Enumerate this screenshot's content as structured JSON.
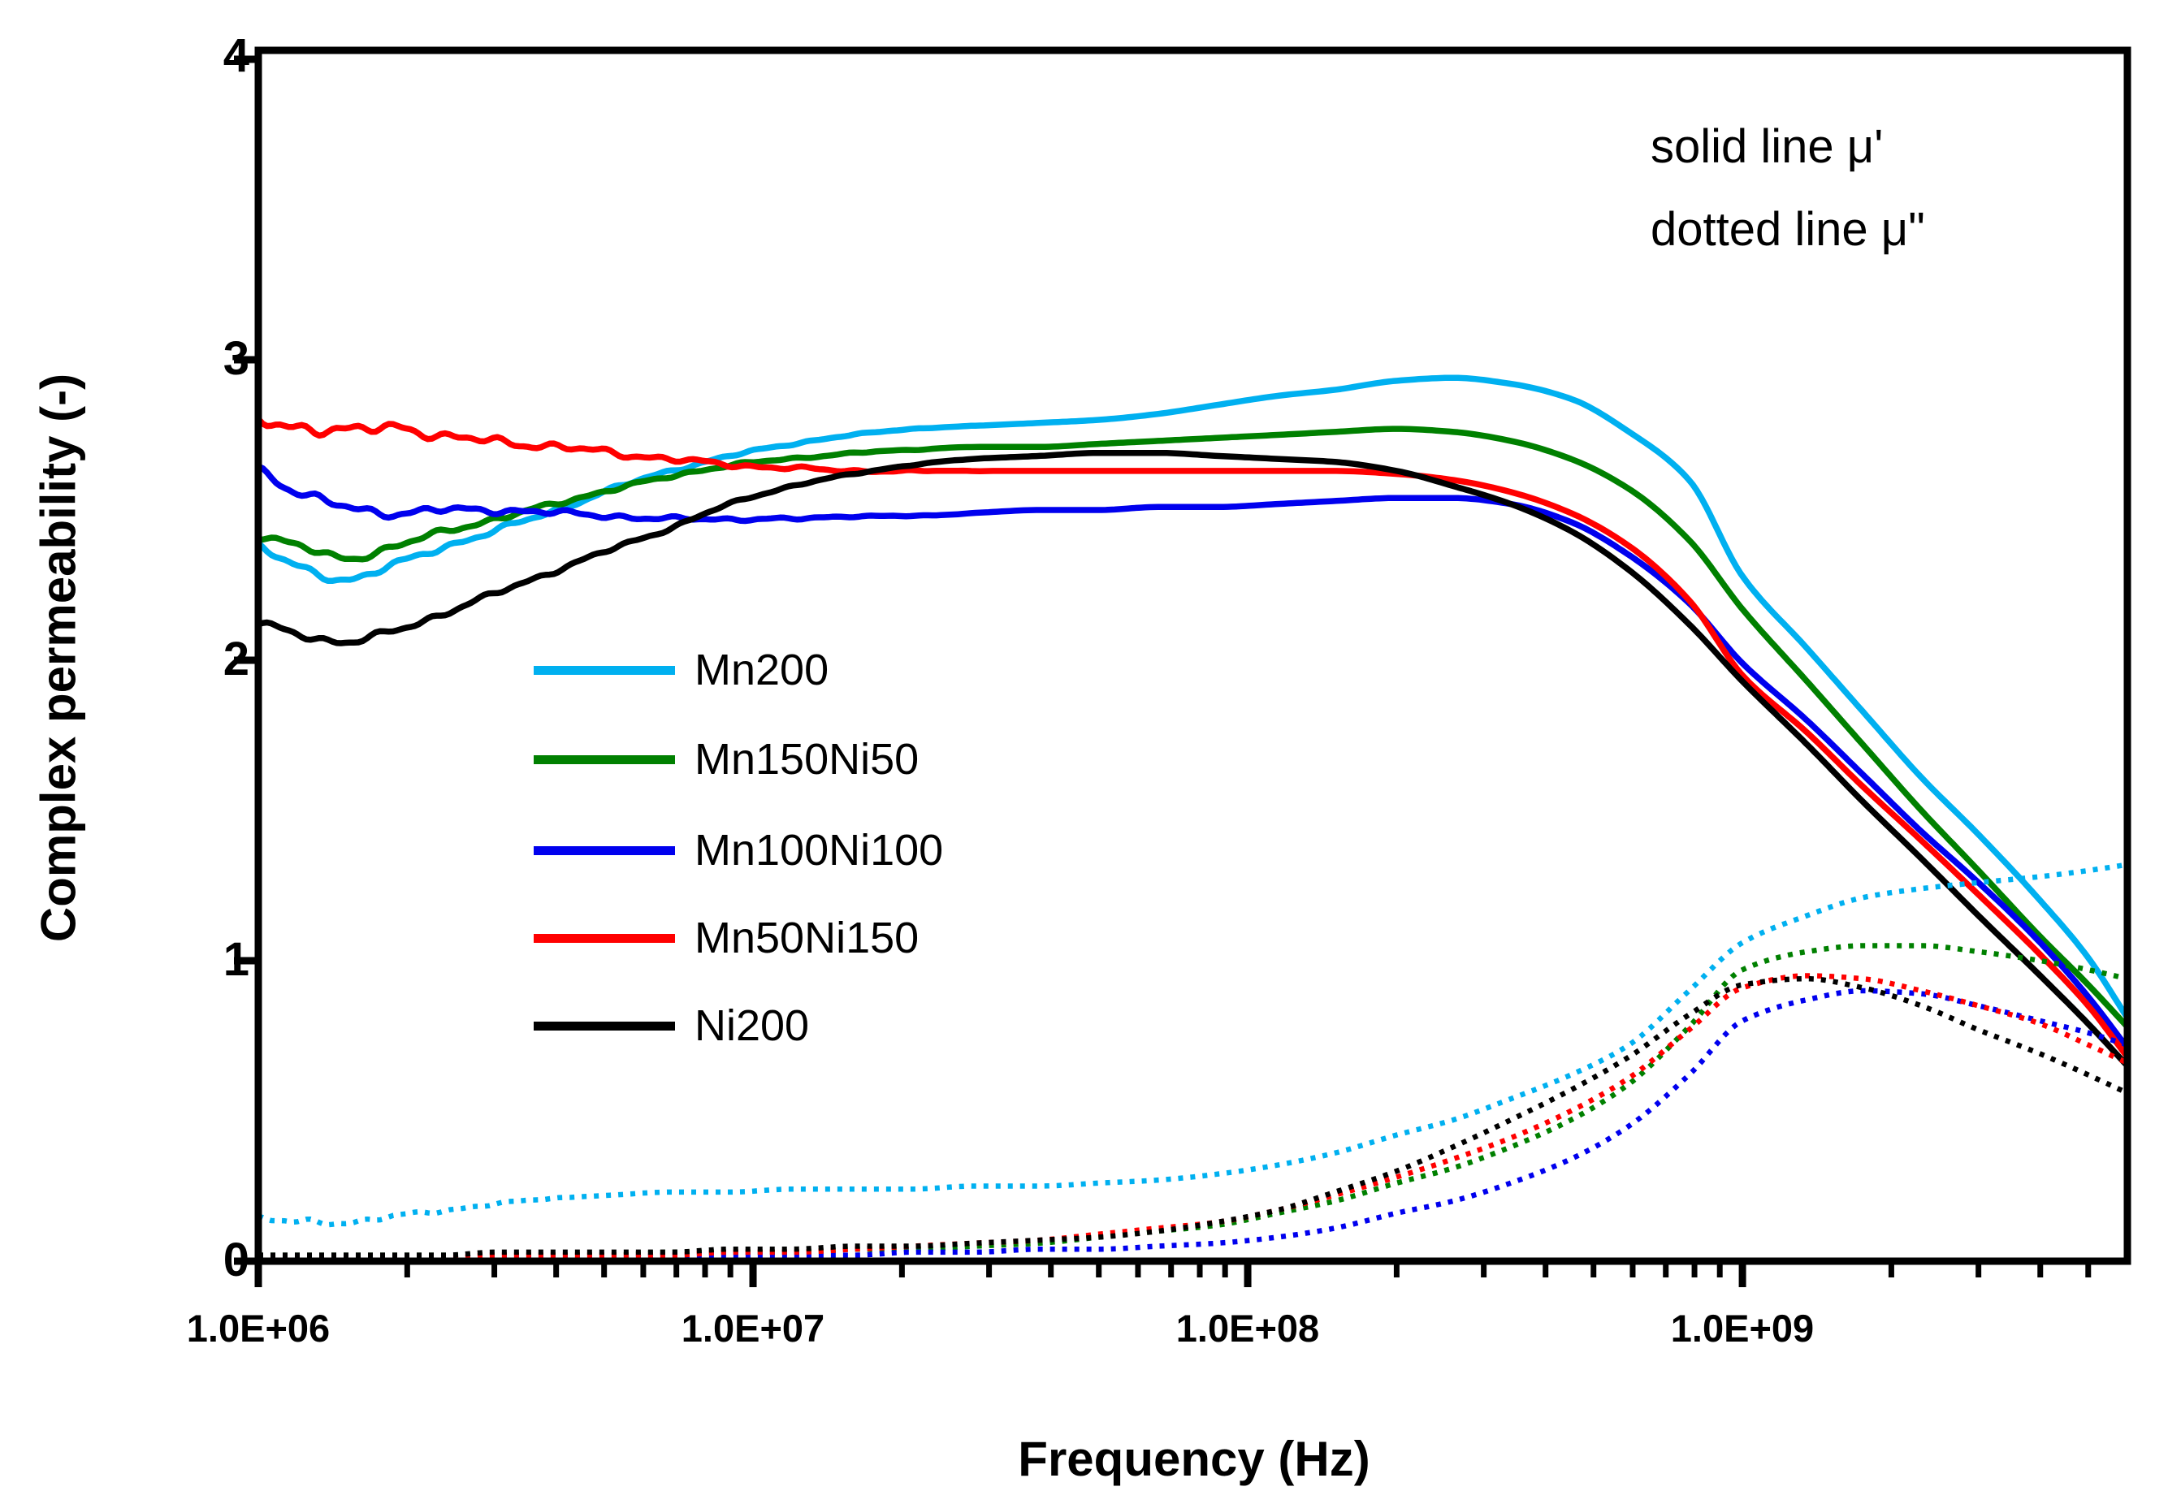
{
  "figure": {
    "background": "#ffffff"
  },
  "chart_data": {
    "type": "line",
    "title": "",
    "xlabel": "Frequency (Hz)",
    "ylabel": "Complex permeability (-)",
    "x_scale": "log",
    "xlim": [
      1000000.0,
      6000000000.0
    ],
    "ylim": [
      0,
      4
    ],
    "grid": "off",
    "legend_position": "inside-left-middle",
    "x_tick_labels": [
      "1.0E+06",
      "1.0E+07",
      "1.0E+08",
      "1.0E+09"
    ],
    "x_tick_values": [
      1000000.0,
      10000000.0,
      100000000.0,
      1000000000.0
    ],
    "y_tick_labels": [
      "0",
      "1",
      "2",
      "3",
      "4"
    ],
    "y_tick_values": [
      0,
      1,
      2,
      3,
      4
    ],
    "annotation": {
      "line1": "solid line μ'",
      "line2": "dotted line μ\""
    },
    "series": [
      {
        "label": "Mn200",
        "component": "mu_prime",
        "style": "solid",
        "color": "#00b0f0",
        "x": [
          1000000.0,
          1200000.0,
          1500000.0,
          1900000.0,
          2400000.0,
          3000000.0,
          4000000.0,
          5200000.0,
          6800000.0,
          9000000.0,
          12000000.0,
          16000000.0,
          21000000.0,
          28000000.0,
          38000000.0,
          50000000.0,
          66000000.0,
          87000000.0,
          115000000.0,
          150000000.0,
          200000000.0,
          260000000.0,
          340000000.0,
          450000000.0,
          590000000.0,
          780000000.0,
          1000000000.0,
          1350000000.0,
          1750000000.0,
          2300000000.0,
          3000000000.0,
          4000000000.0,
          5000000000.0,
          6000000000.0
        ],
        "y": [
          2.38,
          2.31,
          2.27,
          2.32,
          2.38,
          2.43,
          2.5,
          2.57,
          2.63,
          2.68,
          2.72,
          2.75,
          2.77,
          2.78,
          2.79,
          2.8,
          2.82,
          2.85,
          2.88,
          2.9,
          2.93,
          2.94,
          2.92,
          2.87,
          2.76,
          2.6,
          2.28,
          2.04,
          1.83,
          1.61,
          1.42,
          1.2,
          1.01,
          0.81
        ]
      },
      {
        "label": "Mn150Ni50",
        "component": "mu_prime",
        "style": "solid",
        "color": "#008000",
        "x": [
          1000000.0,
          1200000.0,
          1500000.0,
          1900000.0,
          2400000.0,
          3000000.0,
          4000000.0,
          5200000.0,
          6800000.0,
          9000000.0,
          12000000.0,
          16000000.0,
          21000000.0,
          28000000.0,
          38000000.0,
          50000000.0,
          66000000.0,
          87000000.0,
          115000000.0,
          150000000.0,
          200000000.0,
          260000000.0,
          340000000.0,
          450000000.0,
          590000000.0,
          780000000.0,
          1000000000.0,
          1350000000.0,
          1750000000.0,
          2300000000.0,
          3000000000.0,
          4000000000.0,
          5000000000.0,
          6000000000.0
        ],
        "y": [
          2.42,
          2.38,
          2.34,
          2.38,
          2.43,
          2.47,
          2.52,
          2.57,
          2.61,
          2.65,
          2.67,
          2.69,
          2.7,
          2.71,
          2.71,
          2.72,
          2.73,
          2.74,
          2.75,
          2.76,
          2.77,
          2.76,
          2.73,
          2.67,
          2.57,
          2.4,
          2.17,
          1.93,
          1.72,
          1.5,
          1.3,
          1.08,
          0.92,
          0.78
        ]
      },
      {
        "label": "Mn100Ni100",
        "component": "mu_prime",
        "style": "solid",
        "color": "#0000ee",
        "x": [
          1000000.0,
          1200000.0,
          1500000.0,
          1900000.0,
          2400000.0,
          3000000.0,
          4000000.0,
          5200000.0,
          6800000.0,
          9000000.0,
          12000000.0,
          16000000.0,
          21000000.0,
          28000000.0,
          38000000.0,
          50000000.0,
          66000000.0,
          87000000.0,
          115000000.0,
          150000000.0,
          200000000.0,
          260000000.0,
          340000000.0,
          450000000.0,
          590000000.0,
          780000000.0,
          1000000000.0,
          1350000000.0,
          1750000000.0,
          2300000000.0,
          3000000000.0,
          4000000000.0,
          5000000000.0,
          6000000000.0
        ],
        "y": [
          2.64,
          2.56,
          2.51,
          2.49,
          2.5,
          2.5,
          2.49,
          2.48,
          2.47,
          2.47,
          2.47,
          2.48,
          2.48,
          2.49,
          2.5,
          2.5,
          2.51,
          2.51,
          2.52,
          2.53,
          2.54,
          2.54,
          2.52,
          2.46,
          2.35,
          2.19,
          1.99,
          1.8,
          1.62,
          1.43,
          1.26,
          1.06,
          0.88,
          0.71
        ]
      },
      {
        "label": "Mn50Ni150",
        "component": "mu_prime",
        "style": "solid",
        "color": "#ff0000",
        "x": [
          1000000.0,
          1200000.0,
          1500000.0,
          1900000.0,
          2400000.0,
          3000000.0,
          4000000.0,
          5200000.0,
          6800000.0,
          9000000.0,
          12000000.0,
          16000000.0,
          21000000.0,
          28000000.0,
          38000000.0,
          50000000.0,
          66000000.0,
          87000000.0,
          115000000.0,
          150000000.0,
          200000000.0,
          260000000.0,
          340000000.0,
          450000000.0,
          590000000.0,
          780000000.0,
          1000000000.0,
          1350000000.0,
          1750000000.0,
          2300000000.0,
          3000000000.0,
          4000000000.0,
          5000000000.0,
          6000000000.0
        ],
        "y": [
          2.8,
          2.78,
          2.76,
          2.78,
          2.74,
          2.73,
          2.71,
          2.69,
          2.67,
          2.65,
          2.64,
          2.63,
          2.63,
          2.63,
          2.63,
          2.63,
          2.63,
          2.63,
          2.63,
          2.63,
          2.62,
          2.6,
          2.56,
          2.49,
          2.38,
          2.2,
          1.95,
          1.76,
          1.58,
          1.4,
          1.22,
          1.02,
          0.85,
          0.68
        ]
      },
      {
        "label": "Ni200",
        "component": "mu_prime",
        "style": "solid",
        "color": "#000000",
        "x": [
          1000000.0,
          1200000.0,
          1500000.0,
          1900000.0,
          2400000.0,
          3000000.0,
          4000000.0,
          5200000.0,
          6800000.0,
          9000000.0,
          12000000.0,
          16000000.0,
          21000000.0,
          28000000.0,
          38000000.0,
          50000000.0,
          66000000.0,
          87000000.0,
          115000000.0,
          150000000.0,
          200000000.0,
          260000000.0,
          340000000.0,
          450000000.0,
          590000000.0,
          780000000.0,
          1000000000.0,
          1350000000.0,
          1750000000.0,
          2300000000.0,
          3000000000.0,
          4000000000.0,
          5000000000.0,
          6000000000.0
        ],
        "y": [
          2.12,
          2.09,
          2.06,
          2.1,
          2.16,
          2.22,
          2.3,
          2.37,
          2.44,
          2.52,
          2.58,
          2.62,
          2.65,
          2.67,
          2.68,
          2.69,
          2.69,
          2.68,
          2.67,
          2.66,
          2.63,
          2.58,
          2.52,
          2.43,
          2.3,
          2.12,
          1.93,
          1.72,
          1.53,
          1.34,
          1.15,
          0.95,
          0.79,
          0.65
        ]
      },
      {
        "label": "Mn200",
        "component": "mu_double_prime",
        "style": "dotted",
        "color": "#00b0f0",
        "x": [
          1000000.0,
          1200000.0,
          1500000.0,
          1900000.0,
          2400000.0,
          3000000.0,
          4000000.0,
          5200000.0,
          6800000.0,
          9000000.0,
          12000000.0,
          16000000.0,
          21000000.0,
          28000000.0,
          38000000.0,
          50000000.0,
          66000000.0,
          87000000.0,
          115000000.0,
          150000000.0,
          200000000.0,
          260000000.0,
          340000000.0,
          450000000.0,
          590000000.0,
          780000000.0,
          1000000000.0,
          1350000000.0,
          1750000000.0,
          2300000000.0,
          3000000000.0,
          4000000000.0,
          5000000000.0,
          6000000000.0
        ],
        "y": [
          0.14,
          0.13,
          0.13,
          0.15,
          0.17,
          0.19,
          0.21,
          0.22,
          0.23,
          0.23,
          0.24,
          0.24,
          0.24,
          0.25,
          0.25,
          0.26,
          0.27,
          0.29,
          0.32,
          0.36,
          0.42,
          0.47,
          0.54,
          0.62,
          0.72,
          0.9,
          1.06,
          1.15,
          1.21,
          1.24,
          1.26,
          1.28,
          1.3,
          1.32
        ]
      },
      {
        "label": "Mn150Ni50",
        "component": "mu_double_prime",
        "style": "dotted",
        "color": "#008000",
        "x": [
          1000000.0,
          1200000.0,
          1500000.0,
          1900000.0,
          2400000.0,
          3000000.0,
          4000000.0,
          5200000.0,
          6800000.0,
          9000000.0,
          12000000.0,
          16000000.0,
          21000000.0,
          28000000.0,
          38000000.0,
          50000000.0,
          66000000.0,
          87000000.0,
          115000000.0,
          150000000.0,
          200000000.0,
          260000000.0,
          340000000.0,
          450000000.0,
          590000000.0,
          780000000.0,
          1000000000.0,
          1350000000.0,
          1750000000.0,
          2300000000.0,
          3000000000.0,
          4000000000.0,
          5000000000.0,
          6000000000.0
        ],
        "y": [
          0.02,
          0.02,
          0.02,
          0.02,
          0.02,
          0.02,
          0.02,
          0.02,
          0.03,
          0.03,
          0.03,
          0.04,
          0.04,
          0.05,
          0.06,
          0.08,
          0.1,
          0.12,
          0.16,
          0.2,
          0.26,
          0.31,
          0.38,
          0.47,
          0.59,
          0.78,
          0.97,
          1.03,
          1.05,
          1.05,
          1.03,
          1.0,
          0.97,
          0.94
        ]
      },
      {
        "label": "Mn100Ni100",
        "component": "mu_double_prime",
        "style": "dotted",
        "color": "#0000ee",
        "x": [
          1000000.0,
          1200000.0,
          1500000.0,
          1900000.0,
          2400000.0,
          3000000.0,
          4000000.0,
          5200000.0,
          6800000.0,
          9000000.0,
          12000000.0,
          16000000.0,
          21000000.0,
          28000000.0,
          38000000.0,
          50000000.0,
          66000000.0,
          87000000.0,
          115000000.0,
          150000000.0,
          200000000.0,
          260000000.0,
          340000000.0,
          450000000.0,
          590000000.0,
          780000000.0,
          1000000000.0,
          1350000000.0,
          1750000000.0,
          2300000000.0,
          3000000000.0,
          4000000000.0,
          5000000000.0,
          6000000000.0
        ],
        "y": [
          0.01,
          0.01,
          0.01,
          0.01,
          0.01,
          0.01,
          0.01,
          0.01,
          0.02,
          0.02,
          0.02,
          0.02,
          0.03,
          0.03,
          0.04,
          0.04,
          0.05,
          0.06,
          0.08,
          0.11,
          0.16,
          0.2,
          0.26,
          0.34,
          0.45,
          0.62,
          0.8,
          0.87,
          0.9,
          0.89,
          0.85,
          0.8,
          0.76,
          0.72
        ]
      },
      {
        "label": "Mn50Ni150",
        "component": "mu_double_prime",
        "style": "dotted",
        "color": "#ff0000",
        "x": [
          1000000.0,
          1200000.0,
          1500000.0,
          1900000.0,
          2400000.0,
          3000000.0,
          4000000.0,
          5200000.0,
          6800000.0,
          9000000.0,
          12000000.0,
          16000000.0,
          21000000.0,
          28000000.0,
          38000000.0,
          50000000.0,
          66000000.0,
          87000000.0,
          115000000.0,
          150000000.0,
          200000000.0,
          260000000.0,
          340000000.0,
          450000000.0,
          590000000.0,
          780000000.0,
          1000000000.0,
          1350000000.0,
          1750000000.0,
          2300000000.0,
          3000000000.0,
          4000000000.0,
          5000000000.0,
          6000000000.0
        ],
        "y": [
          0.01,
          0.01,
          0.01,
          0.01,
          0.01,
          0.02,
          0.02,
          0.02,
          0.02,
          0.03,
          0.03,
          0.04,
          0.05,
          0.06,
          0.07,
          0.09,
          0.11,
          0.13,
          0.17,
          0.22,
          0.28,
          0.34,
          0.41,
          0.5,
          0.61,
          0.77,
          0.91,
          0.95,
          0.94,
          0.9,
          0.85,
          0.79,
          0.72,
          0.66
        ]
      },
      {
        "label": "Ni200",
        "component": "mu_double_prime",
        "style": "dotted",
        "color": "#000000",
        "x": [
          1000000.0,
          1200000.0,
          1500000.0,
          1900000.0,
          2400000.0,
          3000000.0,
          4000000.0,
          5200000.0,
          6800000.0,
          9000000.0,
          12000000.0,
          16000000.0,
          21000000.0,
          28000000.0,
          38000000.0,
          50000000.0,
          66000000.0,
          87000000.0,
          115000000.0,
          150000000.0,
          200000000.0,
          260000000.0,
          340000000.0,
          450000000.0,
          590000000.0,
          780000000.0,
          1000000000.0,
          1350000000.0,
          1750000000.0,
          2300000000.0,
          3000000000.0,
          4000000000.0,
          5000000000.0,
          6000000000.0
        ],
        "y": [
          0.02,
          0.02,
          0.02,
          0.02,
          0.02,
          0.03,
          0.03,
          0.03,
          0.03,
          0.04,
          0.04,
          0.05,
          0.05,
          0.06,
          0.07,
          0.08,
          0.1,
          0.13,
          0.17,
          0.23,
          0.3,
          0.38,
          0.47,
          0.57,
          0.68,
          0.82,
          0.92,
          0.94,
          0.91,
          0.85,
          0.77,
          0.69,
          0.62,
          0.56
        ]
      }
    ]
  }
}
